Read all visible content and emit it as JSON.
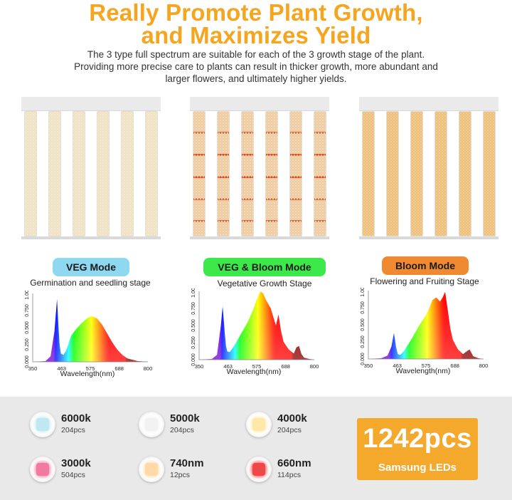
{
  "header": {
    "title_line1": "Really Promote Plant Growth,",
    "title_line2": "and Maximizes Yield",
    "description_line1": "The 3 type full spectrum are suitable for each of the 3 growth stage of the plant.",
    "description_line2": "Providing more precise care to plants can result in thicker growth, more abundant and",
    "description_line3": "larger flowers, and ultimately higher yields."
  },
  "modes": [
    {
      "label": "VEG Mode",
      "stage": "Germination and seedling stage",
      "color": "#8ed8f0",
      "strip_style": "veg"
    },
    {
      "label": "VEG & Bloom Mode",
      "stage": "Vegetative Growth Stage",
      "color": "#3ce84a",
      "strip_style": "mix"
    },
    {
      "label": "Bloom Mode",
      "stage": "Flowering and Fruiting Stage",
      "color": "#f08a30",
      "strip_style": "bloom"
    }
  ],
  "chart_data": [
    {
      "type": "area",
      "xlabel": "Wavelength(nm)",
      "ylabel": "",
      "x_ticks": [
        "350",
        "463",
        "575",
        "688",
        "800"
      ],
      "y_ticks": [
        "0.000",
        "0.250",
        "0.500",
        "0.750",
        "1.000"
      ],
      "xlim": [
        350,
        800
      ],
      "ylim": [
        0,
        1
      ],
      "series": [
        {
          "x": [
            350,
            400,
            420,
            435,
            445,
            450,
            455,
            460,
            470,
            480,
            490,
            500,
            520,
            540,
            560,
            580,
            600,
            620,
            640,
            660,
            680,
            700,
            720,
            740,
            760,
            780,
            800
          ],
          "y": [
            0,
            0.01,
            0.08,
            0.45,
            0.92,
            0.55,
            0.25,
            0.12,
            0.1,
            0.16,
            0.26,
            0.38,
            0.48,
            0.56,
            0.63,
            0.67,
            0.64,
            0.55,
            0.42,
            0.29,
            0.18,
            0.1,
            0.05,
            0.03,
            0.01,
            0.005,
            0
          ]
        }
      ]
    },
    {
      "type": "area",
      "xlabel": "Wavelength(nm)",
      "ylabel": "",
      "x_ticks": [
        "350",
        "463",
        "575",
        "688",
        "800"
      ],
      "y_ticks": [
        "0.000",
        "0.250",
        "0.500",
        "0.750",
        "1.000"
      ],
      "xlim": [
        350,
        800
      ],
      "ylim": [
        0,
        1
      ],
      "series": [
        {
          "x": [
            350,
            400,
            420,
            435,
            442,
            450,
            455,
            460,
            470,
            490,
            520,
            540,
            560,
            575,
            590,
            600,
            610,
            630,
            640,
            650,
            660,
            670,
            680,
            700,
            720,
            730,
            740,
            750,
            760,
            780,
            800
          ],
          "y": [
            0,
            0.01,
            0.07,
            0.5,
            0.78,
            0.4,
            0.2,
            0.12,
            0.11,
            0.22,
            0.42,
            0.55,
            0.72,
            0.88,
            1.0,
            0.97,
            0.88,
            0.75,
            0.62,
            0.5,
            0.66,
            0.42,
            0.26,
            0.15,
            0.09,
            0.18,
            0.2,
            0.08,
            0.03,
            0.01,
            0
          ]
        }
      ]
    },
    {
      "type": "area",
      "xlabel": "Wavelength(nm)",
      "ylabel": "",
      "x_ticks": [
        "350",
        "463",
        "575",
        "688",
        "800"
      ],
      "y_ticks": [
        "0.000",
        "0.250",
        "0.500",
        "0.750",
        "1.000"
      ],
      "xlim": [
        350,
        800
      ],
      "ylim": [
        0,
        1
      ],
      "series": [
        {
          "x": [
            350,
            400,
            425,
            440,
            450,
            458,
            465,
            475,
            490,
            520,
            550,
            575,
            590,
            600,
            615,
            630,
            640,
            650,
            660,
            670,
            680,
            700,
            720,
            730,
            745,
            760,
            780,
            800
          ],
          "y": [
            0,
            0.01,
            0.05,
            0.18,
            0.38,
            0.18,
            0.07,
            0.06,
            0.12,
            0.3,
            0.5,
            0.64,
            0.76,
            0.86,
            0.9,
            0.84,
            0.9,
            0.98,
            0.72,
            0.45,
            0.28,
            0.14,
            0.07,
            0.1,
            0.14,
            0.04,
            0.01,
            0
          ]
        }
      ]
    }
  ],
  "leds": [
    {
      "name": "6000k",
      "count": "204pcs",
      "icon": "led-chip-6000k-icon",
      "glow": "#bfe8f0"
    },
    {
      "name": "5000k",
      "count": "204pcs",
      "icon": "led-chip-5000k-icon",
      "glow": "#f2f2f2"
    },
    {
      "name": "4000k",
      "count": "204pcs",
      "icon": "led-chip-4000k-icon",
      "glow": "#ffe9a8"
    },
    {
      "name": "3000k",
      "count": "504pcs",
      "icon": "led-chip-3000k-icon",
      "glow": "#f07aa0"
    },
    {
      "name": "740nm",
      "count": "12pcs",
      "icon": "led-chip-740nm-icon",
      "glow": "#ffd9a8"
    },
    {
      "name": "660nm",
      "count": "114pcs",
      "icon": "led-chip-660nm-icon",
      "glow": "#ee4848"
    }
  ],
  "total": {
    "number": "1242pcs",
    "label": "Samsung LEDs",
    "color": "#f4a92c"
  }
}
